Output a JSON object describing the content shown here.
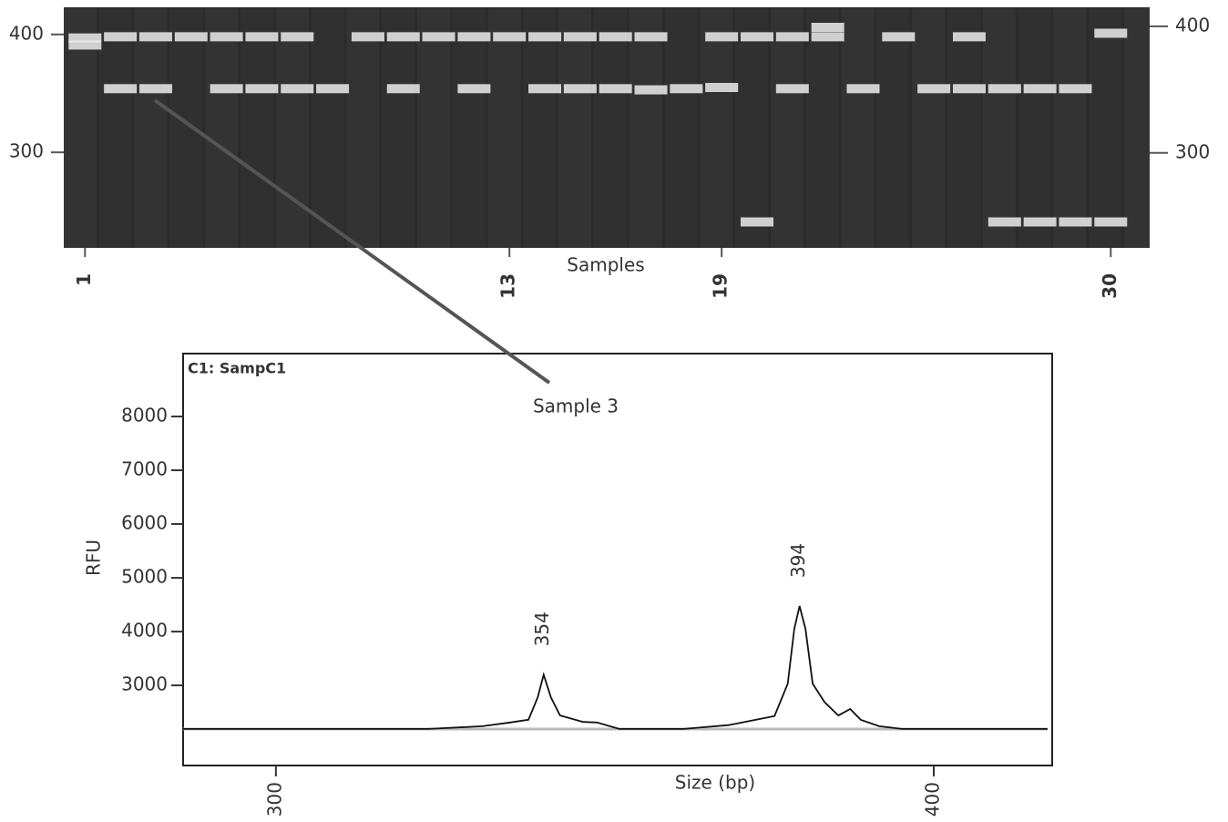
{
  "chart_data": [
    {
      "type": "gel",
      "x_label": "Samples",
      "annotation": "Sample 3",
      "xlim": [
        0.4,
        31.1
      ],
      "xticks": [
        1,
        13,
        19,
        30
      ],
      "ylim": [
        219,
        423
      ],
      "yticks": [
        300,
        400
      ],
      "y2lim": [
        225,
        415
      ],
      "y2ticks": [
        300,
        400
      ],
      "color": "#ececec",
      "x": [
        1,
        1,
        2,
        3,
        4,
        5,
        6,
        7,
        9,
        10,
        11,
        12,
        13,
        14,
        15,
        16,
        17,
        19,
        20,
        21,
        22,
        22,
        24,
        26,
        30,
        2,
        3,
        5,
        6,
        7,
        8,
        10,
        12,
        14,
        15,
        16,
        17,
        18,
        19,
        21,
        23,
        25,
        26,
        27,
        28,
        29,
        20,
        27,
        28,
        29,
        30
      ],
      "values": [
        397,
        391,
        398,
        398,
        398,
        398,
        398,
        398,
        398,
        398,
        398,
        398,
        398,
        398,
        398,
        398,
        398,
        398,
        398,
        398,
        406,
        398,
        398,
        398,
        401,
        354,
        354,
        354,
        354,
        354,
        354,
        354,
        354,
        354,
        354,
        354,
        353,
        354,
        355,
        354,
        354,
        354,
        354,
        354,
        354,
        354,
        241,
        241,
        241,
        241,
        241
      ]
    },
    {
      "type": "line",
      "title": "C1: SampC1",
      "x_label": "Size (bp)",
      "y_label": "RFU",
      "xlim": [
        285.9,
        418
      ],
      "xticks": [
        300,
        400
      ],
      "ylim": [
        1510,
        9170
      ],
      "yticks": [
        3000,
        4000,
        5000,
        6000,
        7000,
        8000
      ],
      "color": "#111111",
      "annotations": [
        {
          "text": "354",
          "x": 340.7,
          "y": 3200
        },
        {
          "text": "394",
          "x": 379.6,
          "y": 4475
        }
      ],
      "x": [
        285.9,
        323.1,
        331.4,
        335.6,
        338.4,
        339.8,
        340.7,
        341.8,
        343.2,
        346.7,
        348.8,
        352.2,
        361.9,
        368.8,
        373.0,
        375.8,
        377.8,
        378.8,
        379.6,
        380.5,
        381.6,
        383.4,
        385.5,
        387.3,
        388.9,
        391.7,
        395.2,
        417.3
      ],
      "values": [
        2190,
        2190,
        2240,
        2310,
        2360,
        2780,
        3200,
        2780,
        2440,
        2320,
        2310,
        2190,
        2190,
        2260,
        2360,
        2430,
        3030,
        4050,
        4475,
        4050,
        3030,
        2690,
        2440,
        2560,
        2360,
        2240,
        2190,
        2190
      ]
    }
  ]
}
